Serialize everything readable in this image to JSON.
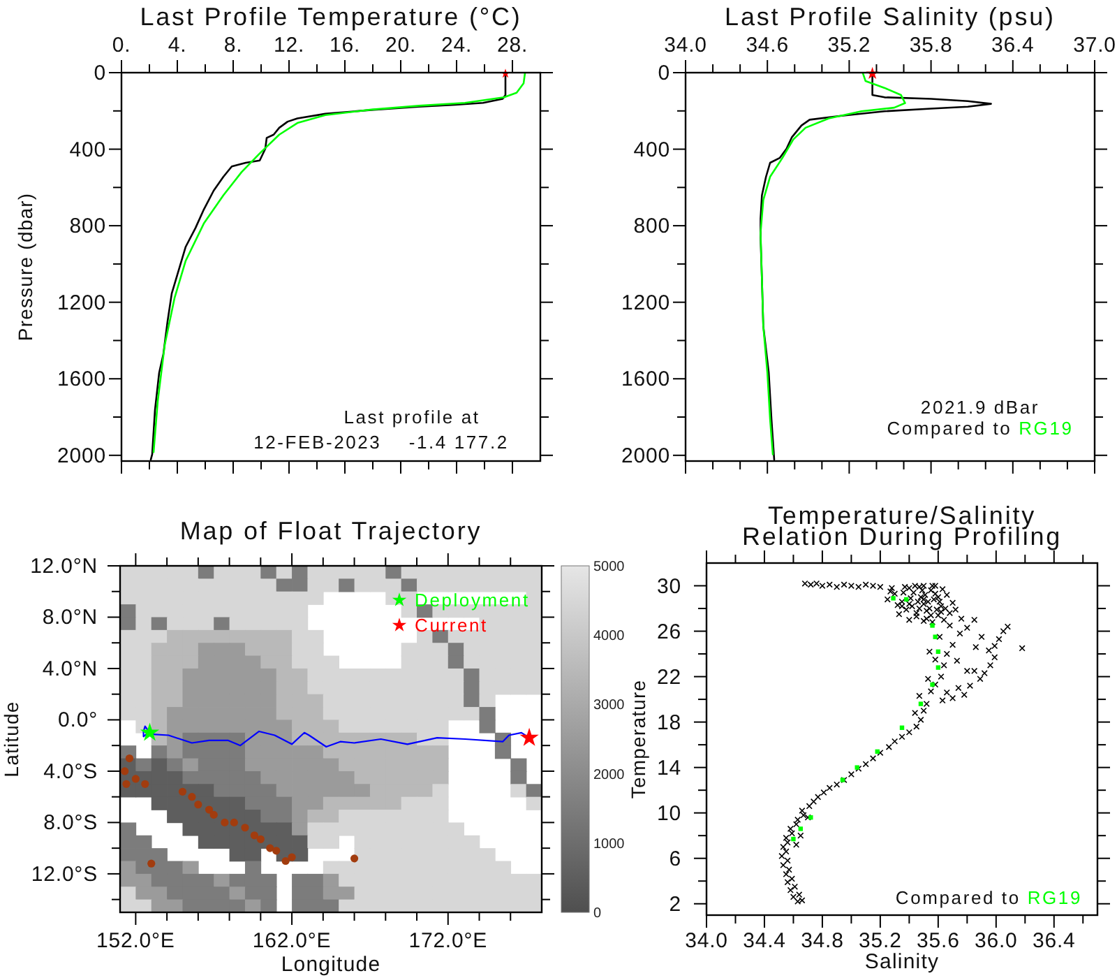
{
  "chart_data": [
    {
      "type": "line",
      "title": "Last Profile Temperature (°C)",
      "ylabel": "Pressure (dbar)",
      "xlim": [
        0,
        30
      ],
      "xticks": [
        {
          "value": 0,
          "label": "0."
        },
        {
          "value": 2,
          "label": null
        },
        {
          "value": 4,
          "label": "4."
        },
        {
          "value": 6,
          "label": null
        },
        {
          "value": 8,
          "label": "8."
        },
        {
          "value": 10,
          "label": null
        },
        {
          "value": 12,
          "label": "12."
        },
        {
          "value": 14,
          "label": null
        },
        {
          "value": 16,
          "label": "16."
        },
        {
          "value": 18,
          "label": null
        },
        {
          "value": 20,
          "label": "20."
        },
        {
          "value": 22,
          "label": null
        },
        {
          "value": 24,
          "label": "24."
        },
        {
          "value": 26,
          "label": null
        },
        {
          "value": 28,
          "label": "28."
        }
      ],
      "ylim": [
        2030,
        0
      ],
      "yticks": [
        0,
        {
          "value": 200,
          "label": null
        },
        400,
        {
          "value": 600,
          "label": null
        },
        800,
        {
          "value": 1000,
          "label": null
        },
        1200,
        {
          "value": 1400,
          "label": null
        },
        1600,
        {
          "value": 1800,
          "label": null
        },
        2000
      ],
      "series": [
        {
          "color": "#000000",
          "x": [
            27.5,
            27.5,
            27.3,
            25.9,
            23.9,
            21.3,
            17.9,
            14.6,
            12.6,
            11.9,
            11.3,
            10.9,
            10.4,
            10.3,
            9.9,
            8.9,
            7.9,
            7.3,
            6.6,
            5.9,
            5.3,
            4.6,
            4.1,
            3.6,
            3.3,
            3.0,
            2.7,
            2.4,
            2.2,
            2.1
          ],
          "values": [
            5,
            117,
            137,
            158,
            168,
            178,
            195,
            215,
            239,
            256,
            288,
            324,
            341,
            398,
            459,
            471,
            490,
            544,
            617,
            715,
            812,
            910,
            1032,
            1154,
            1300,
            1471,
            1568,
            1763,
            1995,
            2022
          ]
        },
        {
          "color": "#00ff00",
          "x": [
            28.9,
            28.8,
            28.3,
            27.4,
            24.6,
            21.3,
            17.9,
            14.6,
            12.6,
            11.3,
            9.9,
            8.6,
            7.3,
            5.9,
            4.6,
            3.8,
            3.1,
            2.6,
            2.3
          ],
          "values": [
            2,
            56,
            105,
            129,
            158,
            173,
            193,
            222,
            263,
            324,
            422,
            520,
            641,
            788,
            983,
            1178,
            1422,
            1715,
            1983
          ]
        },
        {
          "type": "scatter",
          "marker": "star",
          "color": "#ff0000",
          "x": [
            27.5
          ],
          "values": [
            5
          ]
        }
      ],
      "annotations": [
        "Last profile at",
        "12-FEB-2023    -1.4 177.2"
      ]
    },
    {
      "type": "line",
      "title": "Last Profile Salinity (psu)",
      "xlim": [
        34,
        37
      ],
      "xticks": [
        {
          "value": 34,
          "label": "34.0"
        },
        {
          "value": 34.2,
          "label": null
        },
        {
          "value": 34.4,
          "label": null
        },
        34.6,
        {
          "value": 34.8,
          "label": null
        },
        {
          "value": 35,
          "label": null
        },
        35.2,
        {
          "value": 35.4,
          "label": null
        },
        {
          "value": 35.6,
          "label": null
        },
        35.8,
        {
          "value": 36,
          "label": null
        },
        {
          "value": 36.2,
          "label": null
        },
        36.4,
        {
          "value": 36.6,
          "label": null
        },
        {
          "value": 36.8,
          "label": null
        },
        {
          "value": 37,
          "label": "37.0"
        }
      ],
      "ylim": [
        2030,
        0
      ],
      "yticks": [
        0,
        {
          "value": 200,
          "label": null
        },
        400,
        {
          "value": 600,
          "label": null
        },
        800,
        {
          "value": 1000,
          "label": null
        },
        1200,
        {
          "value": 1400,
          "label": null
        },
        1600,
        {
          "value": 1800,
          "label": null
        },
        2000
      ],
      "series": [
        {
          "color": "#000000",
          "x": [
            35.37,
            35.37,
            35.46,
            35.8,
            36.07,
            36.24,
            36.07,
            35.8,
            35.46,
            35.12,
            34.91,
            34.85,
            34.78,
            34.74,
            34.69,
            34.62,
            34.59,
            34.56,
            34.55,
            34.55,
            34.56,
            34.57,
            34.61,
            34.63,
            34.65
          ],
          "values": [
            5,
            117,
            129,
            137,
            149,
            163,
            178,
            188,
            202,
            227,
            246,
            276,
            337,
            398,
            446,
            471,
            544,
            641,
            763,
            861,
            1080,
            1324,
            1568,
            1812,
            2022
          ]
        },
        {
          "name": "RG19",
          "color": "#00ff00",
          "x": [
            35.3,
            35.32,
            35.46,
            35.58,
            35.61,
            35.53,
            35.29,
            35.05,
            34.88,
            34.79,
            34.71,
            34.62,
            34.57,
            34.55,
            34.56,
            34.57,
            34.6,
            34.62,
            34.64
          ],
          "values": [
            2,
            44,
            80,
            117,
            159,
            183,
            202,
            239,
            288,
            349,
            446,
            544,
            666,
            837,
            1080,
            1324,
            1568,
            1812,
            1995
          ]
        },
        {
          "type": "scatter",
          "marker": "star",
          "color": "#ff0000",
          "x": [
            35.37
          ],
          "values": [
            5
          ]
        }
      ],
      "legend": "bottom right",
      "legend_title": "Compared to",
      "annotations": [
        "2021.9 dBar"
      ]
    },
    {
      "type": "heatmap",
      "title": "Map of Float Trajectory",
      "xlabel": "Longitude",
      "ylabel": "Latitude",
      "xlim": [
        151,
        178
      ],
      "xticks": [
        {
          "value": 152,
          "label": "152.0°E"
        },
        {
          "value": 154,
          "label": null
        },
        {
          "value": 156,
          "label": null
        },
        {
          "value": 158,
          "label": null
        },
        {
          "value": 160,
          "label": null
        },
        {
          "value": 162,
          "label": "162.0°E"
        },
        {
          "value": 164,
          "label": null
        },
        {
          "value": 166,
          "label": null
        },
        {
          "value": 168,
          "label": null
        },
        {
          "value": 170,
          "label": null
        },
        {
          "value": 172,
          "label": "172.0°E"
        },
        {
          "value": 174,
          "label": null
        },
        {
          "value": 176,
          "label": null
        }
      ],
      "ylim": [
        -15,
        12
      ],
      "yticks": [
        {
          "value": 12,
          "label": "12.0°N"
        },
        {
          "value": 10,
          "label": null
        },
        {
          "value": 8,
          "label": "8.0°N"
        },
        {
          "value": 6,
          "label": null
        },
        {
          "value": 4,
          "label": "4.0°N"
        },
        {
          "value": 2,
          "label": null
        },
        {
          "value": 0,
          "label": "0.0°"
        },
        {
          "value": -2,
          "label": null
        },
        {
          "value": -4,
          "label": "4.0°S"
        },
        {
          "value": -6,
          "label": null
        },
        {
          "value": -8,
          "label": "8.0°S"
        },
        {
          "value": -10,
          "label": null
        },
        {
          "value": -12,
          "label": "12.0°S"
        },
        {
          "value": -14,
          "label": null
        }
      ],
      "clim": [
        0,
        5000
      ],
      "cticks": [
        0,
        1000,
        2000,
        3000,
        4000,
        5000
      ],
      "cells": [
        [
          4500,
          4500,
          4500,
          4500,
          4500,
          1500,
          4500,
          4500,
          4500,
          1500,
          4500,
          1500,
          4500,
          4500,
          4500,
          4500,
          4500,
          1500,
          4500,
          4500,
          4500,
          4500,
          4500,
          4500,
          4500,
          4500,
          4500
        ],
        [
          4500,
          4500,
          4500,
          4500,
          4500,
          4500,
          4500,
          4500,
          4500,
          4500,
          1500,
          1500,
          4500,
          4500,
          1500,
          4500,
          4500,
          4500,
          1500,
          4500,
          4500,
          4500,
          4500,
          4500,
          4500,
          4500,
          4500
        ],
        [
          4500,
          4500,
          4500,
          4500,
          4500,
          4500,
          4500,
          4500,
          4500,
          4500,
          4500,
          4500,
          4500,
          null,
          null,
          null,
          null,
          4500,
          4500,
          null,
          null,
          null,
          null,
          null,
          null,
          null,
          4500
        ],
        [
          1500,
          4500,
          4500,
          4500,
          4500,
          4500,
          4500,
          4500,
          4500,
          4500,
          4500,
          4500,
          null,
          null,
          null,
          null,
          null,
          null,
          4500,
          1500,
          4500,
          4500,
          4500,
          4500,
          4500,
          4500,
          4500
        ],
        [
          1500,
          4500,
          1500,
          4500,
          4500,
          4500,
          1500,
          4500,
          4500,
          4500,
          4500,
          4500,
          null,
          null,
          null,
          null,
          null,
          null,
          null,
          null,
          null,
          null,
          null,
          4500,
          4500,
          4500,
          4500
        ],
        [
          4500,
          4500,
          4500,
          3500,
          3500,
          3500,
          3500,
          3500,
          3500,
          3500,
          3500,
          4500,
          4500,
          null,
          null,
          null,
          null,
          null,
          null,
          4500,
          1500,
          4500,
          4500,
          4500,
          4500,
          4500,
          4500
        ],
        [
          4500,
          4500,
          3500,
          3500,
          3500,
          2500,
          2500,
          2500,
          3500,
          3500,
          3500,
          4500,
          4500,
          null,
          null,
          null,
          null,
          null,
          4500,
          4500,
          4500,
          1500,
          4500,
          4500,
          4500,
          4500,
          4500
        ],
        [
          4500,
          4500,
          3500,
          3500,
          3500,
          2500,
          2500,
          2500,
          2500,
          3500,
          3500,
          4500,
          4500,
          4500,
          null,
          null,
          null,
          null,
          4500,
          4500,
          4500,
          1500,
          4500,
          4500,
          4500,
          4500,
          4500
        ],
        [
          4500,
          4500,
          3500,
          3500,
          2500,
          2500,
          2500,
          2500,
          2500,
          2500,
          3500,
          3500,
          4500,
          4500,
          4500,
          4500,
          4500,
          4500,
          4500,
          4500,
          4500,
          4500,
          1500,
          4500,
          4500,
          4500,
          4500
        ],
        [
          4500,
          4500,
          3500,
          3500,
          2500,
          2500,
          2500,
          2500,
          2500,
          2500,
          3500,
          3500,
          4500,
          4500,
          4500,
          4500,
          4500,
          4500,
          4500,
          4500,
          4500,
          4500,
          1500,
          4500,
          4500,
          4500,
          4500
        ],
        [
          4500,
          4500,
          3500,
          3500,
          2500,
          2500,
          2500,
          2500,
          2500,
          2500,
          3500,
          3500,
          3500,
          4500,
          4500,
          4500,
          4500,
          4500,
          4500,
          4500,
          4500,
          4500,
          1500,
          4500,
          null,
          null,
          null
        ],
        [
          4500,
          4500,
          3500,
          2500,
          2500,
          2500,
          2500,
          2500,
          2500,
          2500,
          3500,
          3500,
          3500,
          4500,
          4500,
          4500,
          4500,
          4500,
          4500,
          4500,
          4500,
          4500,
          4500,
          1500,
          null,
          null,
          null
        ],
        [
          null,
          4500,
          3500,
          2500,
          2500,
          2500,
          2500,
          2500,
          2500,
          2500,
          2500,
          3500,
          3500,
          3500,
          4500,
          4500,
          4500,
          4500,
          4500,
          4500,
          4500,
          null,
          null,
          1500,
          null,
          null,
          null
        ],
        [
          null,
          null,
          3500,
          2500,
          1500,
          1500,
          1500,
          1500,
          2500,
          2500,
          2500,
          3500,
          3500,
          3500,
          3500,
          3500,
          3500,
          3500,
          3500,
          4500,
          4500,
          null,
          null,
          null,
          1500,
          null,
          null
        ],
        [
          1500,
          null,
          1500,
          2500,
          1500,
          1500,
          1500,
          1500,
          2500,
          2500,
          2500,
          2500,
          2500,
          3500,
          3500,
          3500,
          3500,
          3500,
          3500,
          3500,
          3500,
          null,
          null,
          null,
          1500,
          null,
          null
        ],
        [
          500,
          1500,
          500,
          1500,
          2500,
          1500,
          1500,
          1500,
          2500,
          2500,
          2500,
          2500,
          2500,
          2500,
          3500,
          3500,
          3500,
          3500,
          3500,
          3500,
          3500,
          null,
          null,
          null,
          null,
          1500,
          null
        ],
        [
          500,
          500,
          500,
          500,
          1500,
          1500,
          1500,
          1500,
          1500,
          2500,
          2500,
          2500,
          2500,
          2500,
          2500,
          3500,
          3500,
          3500,
          3500,
          3500,
          3500,
          null,
          null,
          null,
          null,
          1500,
          null
        ],
        [
          500,
          500,
          500,
          500,
          500,
          500,
          1500,
          1500,
          1500,
          1500,
          2500,
          2500,
          2500,
          2500,
          2500,
          2500,
          3500,
          3500,
          3500,
          3500,
          4500,
          null,
          null,
          null,
          null,
          4500,
          1500
        ],
        [
          null,
          null,
          500,
          500,
          500,
          500,
          500,
          500,
          1500,
          1500,
          1500,
          2500,
          2500,
          3500,
          3500,
          3500,
          3500,
          3500,
          4500,
          4500,
          4500,
          null,
          null,
          null,
          null,
          null,
          4500
        ],
        [
          null,
          null,
          null,
          500,
          500,
          500,
          500,
          500,
          500,
          1500,
          1500,
          2500,
          3500,
          3500,
          4500,
          4500,
          4500,
          4500,
          4500,
          4500,
          4500,
          null,
          null,
          null,
          null,
          null,
          null
        ],
        [
          1500,
          null,
          null,
          null,
          500,
          500,
          500,
          500,
          500,
          500,
          500,
          2500,
          4500,
          4500,
          4500,
          4500,
          4500,
          4500,
          4500,
          4500,
          4500,
          4500,
          null,
          null,
          null,
          null,
          null
        ],
        [
          1500,
          1500,
          null,
          null,
          null,
          500,
          500,
          500,
          500,
          500,
          500,
          500,
          4500,
          4500,
          null,
          4500,
          4500,
          4500,
          4500,
          4500,
          4500,
          4500,
          4500,
          null,
          null,
          null,
          null
        ],
        [
          1500,
          1500,
          1500,
          null,
          null,
          null,
          null,
          500,
          500,
          null,
          500,
          500,
          null,
          null,
          null,
          4500,
          4500,
          4500,
          4500,
          4500,
          4500,
          4500,
          4500,
          4500,
          null,
          null,
          null
        ],
        [
          2500,
          1500,
          1500,
          1500,
          2500,
          null,
          null,
          null,
          1500,
          null,
          null,
          null,
          null,
          4500,
          4500,
          4500,
          4500,
          4500,
          4500,
          4500,
          4500,
          4500,
          4500,
          4500,
          4500,
          null,
          null
        ],
        [
          2500,
          2500,
          1500,
          1500,
          1500,
          1500,
          2500,
          1500,
          1500,
          1500,
          null,
          1500,
          1500,
          2500,
          4500,
          4500,
          4500,
          4500,
          4500,
          4500,
          4500,
          4500,
          4500,
          4500,
          4500,
          4500,
          4500
        ],
        [
          4500,
          2500,
          2500,
          1500,
          1500,
          1500,
          1500,
          2500,
          1500,
          1500,
          null,
          1500,
          1500,
          2500,
          2500,
          4500,
          4500,
          4500,
          4500,
          4500,
          4500,
          4500,
          4500,
          4500,
          4500,
          4500,
          4500
        ],
        [
          4500,
          4500,
          2500,
          2500,
          1500,
          1500,
          1500,
          1500,
          2500,
          1500,
          null,
          1500,
          1500,
          1500,
          4500,
          4500,
          4500,
          4500,
          4500,
          4500,
          4500,
          4500,
          4500,
          4500,
          4500,
          4500,
          4500
        ]
      ],
      "series": [
        {
          "type": "scatter",
          "marker": "circle",
          "color": "#a23c0e",
          "x": [
            151.3,
            152.0,
            152.6,
            151.4,
            151.6,
            155.0,
            155.6,
            156.0,
            156.7,
            157.0,
            157.7,
            158.3,
            159.0,
            159.6,
            160.0,
            160.6,
            161.0,
            161.6,
            162.0,
            153.0,
            166.0
          ],
          "values": [
            -4.0,
            -4.6,
            -5.0,
            -5.0,
            -3.0,
            -5.6,
            -6.0,
            -6.6,
            -7.0,
            -7.4,
            -8.0,
            -8.0,
            -8.4,
            -9.0,
            -9.3,
            -10.0,
            -10.2,
            -11.0,
            -10.7,
            -11.2,
            -10.8
          ]
        },
        {
          "type": "line",
          "color": "#0000ff",
          "x": [
            152.9,
            152.6,
            152.5,
            152.5,
            152.7,
            154.1,
            155.6,
            156.7,
            157.9,
            158.7,
            159.9,
            160.9,
            162.0,
            162.8,
            163.1,
            164.2,
            165.1,
            166.0,
            167.7,
            169.4,
            171.3,
            173.1,
            175.5,
            175.9,
            176.7,
            177.2
          ],
          "values": [
            -1.0,
            -0.5,
            -0.9,
            -1.3,
            -1.1,
            -1.2,
            -1.8,
            -1.6,
            -1.6,
            -2.0,
            -0.9,
            -1.2,
            -1.9,
            -1.0,
            -1.2,
            -2.1,
            -1.7,
            -1.8,
            -1.5,
            -1.9,
            -1.4,
            -1.5,
            -1.7,
            -1.2,
            -1.0,
            -1.4
          ]
        },
        {
          "type": "scatter",
          "marker": "star",
          "name": "Deployment",
          "color": "#00ff00",
          "x": [
            152.9
          ],
          "values": [
            -1.0
          ]
        },
        {
          "type": "scatter",
          "marker": "star",
          "name": "Current",
          "color": "#ff0000",
          "x": [
            177.2
          ],
          "values": [
            -1.4
          ]
        }
      ],
      "legend": "top right"
    },
    {
      "type": "scatter",
      "title": "Temperature/Salinity\nRelation During Profiling",
      "xlabel": "Salinity",
      "ylabel": "Temperature",
      "xlim": [
        34,
        36.7
      ],
      "xticks": [
        {
          "value": 34,
          "label": "34.0"
        },
        {
          "value": 34.2,
          "label": null
        },
        34.4,
        {
          "value": 34.6,
          "label": null
        },
        34.8,
        {
          "value": 35,
          "label": null
        },
        35.2,
        {
          "value": 35.4,
          "label": null
        },
        35.6,
        {
          "value": 35.8,
          "label": null
        },
        {
          "value": 36,
          "label": "36.0"
        },
        {
          "value": 36.2,
          "label": null
        },
        36.4,
        {
          "value": 36.6,
          "label": null
        }
      ],
      "ylim": [
        1,
        32
      ],
      "yticks": [
        2,
        {
          "value": 4,
          "label": null
        },
        6,
        {
          "value": 8,
          "label": null
        },
        10,
        {
          "value": 12,
          "label": null
        },
        14,
        {
          "value": 16,
          "label": null
        },
        18,
        {
          "value": 20,
          "label": null
        },
        22,
        {
          "value": 24,
          "label": null
        },
        26,
        {
          "value": 28,
          "label": null
        },
        30
      ],
      "series": [
        {
          "marker": "cross",
          "color": "#000000",
          "x": [
            34.63,
            34.66,
            34.6,
            34.64,
            34.58,
            34.61,
            34.56,
            34.59,
            34.55,
            34.57,
            34.53,
            34.56,
            34.52,
            34.55,
            34.53,
            34.56,
            34.55,
            34.59,
            34.58,
            34.62,
            34.63,
            34.67,
            34.66,
            34.71,
            34.74,
            34.77,
            34.81,
            34.85,
            34.62,
            34.65,
            34.7,
            34.9,
            34.95,
            35.0,
            35.05,
            35.1,
            35.15,
            35.2,
            35.26,
            35.3,
            35.35,
            35.4,
            35.45,
            35.48,
            35.44,
            35.5,
            35.52,
            35.47,
            35.55,
            35.58,
            35.53,
            35.63,
            35.66,
            35.7,
            35.74,
            35.78,
            35.82,
            35.89,
            35.85,
            35.92,
            35.96,
            35.99,
            35.95,
            35.99,
            36.02,
            36.05,
            36.08,
            36.18,
            35.8,
            35.75,
            35.61,
            35.54,
            35.73,
            35.66,
            35.7,
            35.86,
            35.9,
            35.64,
            35.8,
            35.62,
            35.58,
            35.68,
            35.76,
            35.85,
            35.25,
            35.3,
            35.35,
            35.4,
            35.42,
            35.45,
            35.48,
            35.5,
            35.52,
            35.55,
            35.57,
            35.6,
            35.62,
            35.64,
            35.38,
            35.33,
            35.44,
            35.5,
            35.58,
            35.66,
            35.7,
            35.56,
            35.5,
            35.4,
            35.46,
            35.54,
            35.36,
            35.28,
            35.6,
            35.27,
            35.32,
            35.37,
            35.41,
            35.43,
            35.47,
            35.49,
            35.51,
            35.53,
            35.55,
            35.58,
            35.61,
            35.63,
            35.65,
            35.45,
            35.52,
            35.59,
            35.68,
            35.72,
            35.35,
            35.4,
            35.47,
            35.56,
            35.62,
            35.5,
            35.2,
            35.15,
            35.1,
            35.05,
            35.0,
            34.95,
            34.9,
            34.85,
            34.8,
            34.76,
            34.72,
            34.68
          ],
          "values": [
            2.2,
            2.3,
            2.6,
            2.8,
            3.2,
            3.5,
            3.9,
            4.2,
            4.6,
            5.0,
            5.4,
            5.8,
            6.2,
            6.6,
            7.0,
            7.4,
            7.8,
            8.2,
            8.6,
            9.0,
            9.4,
            9.8,
            10.2,
            10.6,
            11.0,
            11.4,
            11.8,
            12.2,
            7.2,
            8.0,
            9.6,
            12.5,
            12.9,
            13.4,
            13.9,
            14.3,
            14.8,
            15.3,
            15.8,
            16.3,
            16.7,
            17.1,
            17.6,
            18.2,
            18.8,
            19.0,
            19.6,
            20.3,
            20.7,
            21.3,
            21.8,
            19.9,
            20.6,
            20.1,
            21.0,
            20.4,
            21.2,
            21.8,
            22.5,
            22.3,
            23.0,
            23.7,
            24.3,
            24.7,
            25.3,
            26.0,
            26.4,
            24.5,
            26.3,
            25.8,
            25.5,
            24.2,
            23.4,
            24.0,
            24.8,
            24.6,
            25.5,
            23.0,
            22.5,
            22.0,
            23.5,
            26.5,
            27.1,
            27.0,
            28.8,
            29.3,
            28.6,
            29.8,
            28.2,
            27.6,
            29.0,
            28.4,
            27.8,
            29.6,
            28.8,
            27.4,
            28.2,
            27.0,
            27.9,
            27.5,
            30.0,
            30.0,
            30.0,
            29.2,
            28.5,
            26.8,
            26.9,
            27.0,
            28.6,
            28.0,
            29.4,
            29.8,
            29.0,
            29.5,
            28.3,
            29.9,
            28.9,
            29.4,
            28.0,
            29.6,
            29.2,
            28.6,
            27.4,
            29.3,
            28.6,
            29.7,
            28.0,
            27.3,
            27.1,
            27.9,
            27.6,
            27.9,
            28.2,
            28.4,
            29.9,
            30.0,
            27.7,
            28.8,
            29.9,
            30.0,
            30.1,
            29.9,
            30.0,
            30.1,
            29.9,
            30.1,
            30.0,
            30.2,
            30.1,
            30.2
          ]
        },
        {
          "name": "RG19",
          "marker": "square",
          "color": "#00ff00",
          "x": [
            34.6,
            34.65,
            34.72,
            34.94,
            35.04,
            35.18,
            35.35,
            35.48,
            35.56,
            35.6,
            35.6,
            35.58,
            35.56,
            35.38,
            35.29
          ],
          "values": [
            7.7,
            8.6,
            9.6,
            12.9,
            14.0,
            15.4,
            17.5,
            19.6,
            21.3,
            22.8,
            24.2,
            25.5,
            26.5,
            28.8,
            28.9
          ]
        }
      ],
      "legend": "bottom right",
      "legend_title": "Compared to"
    }
  ]
}
